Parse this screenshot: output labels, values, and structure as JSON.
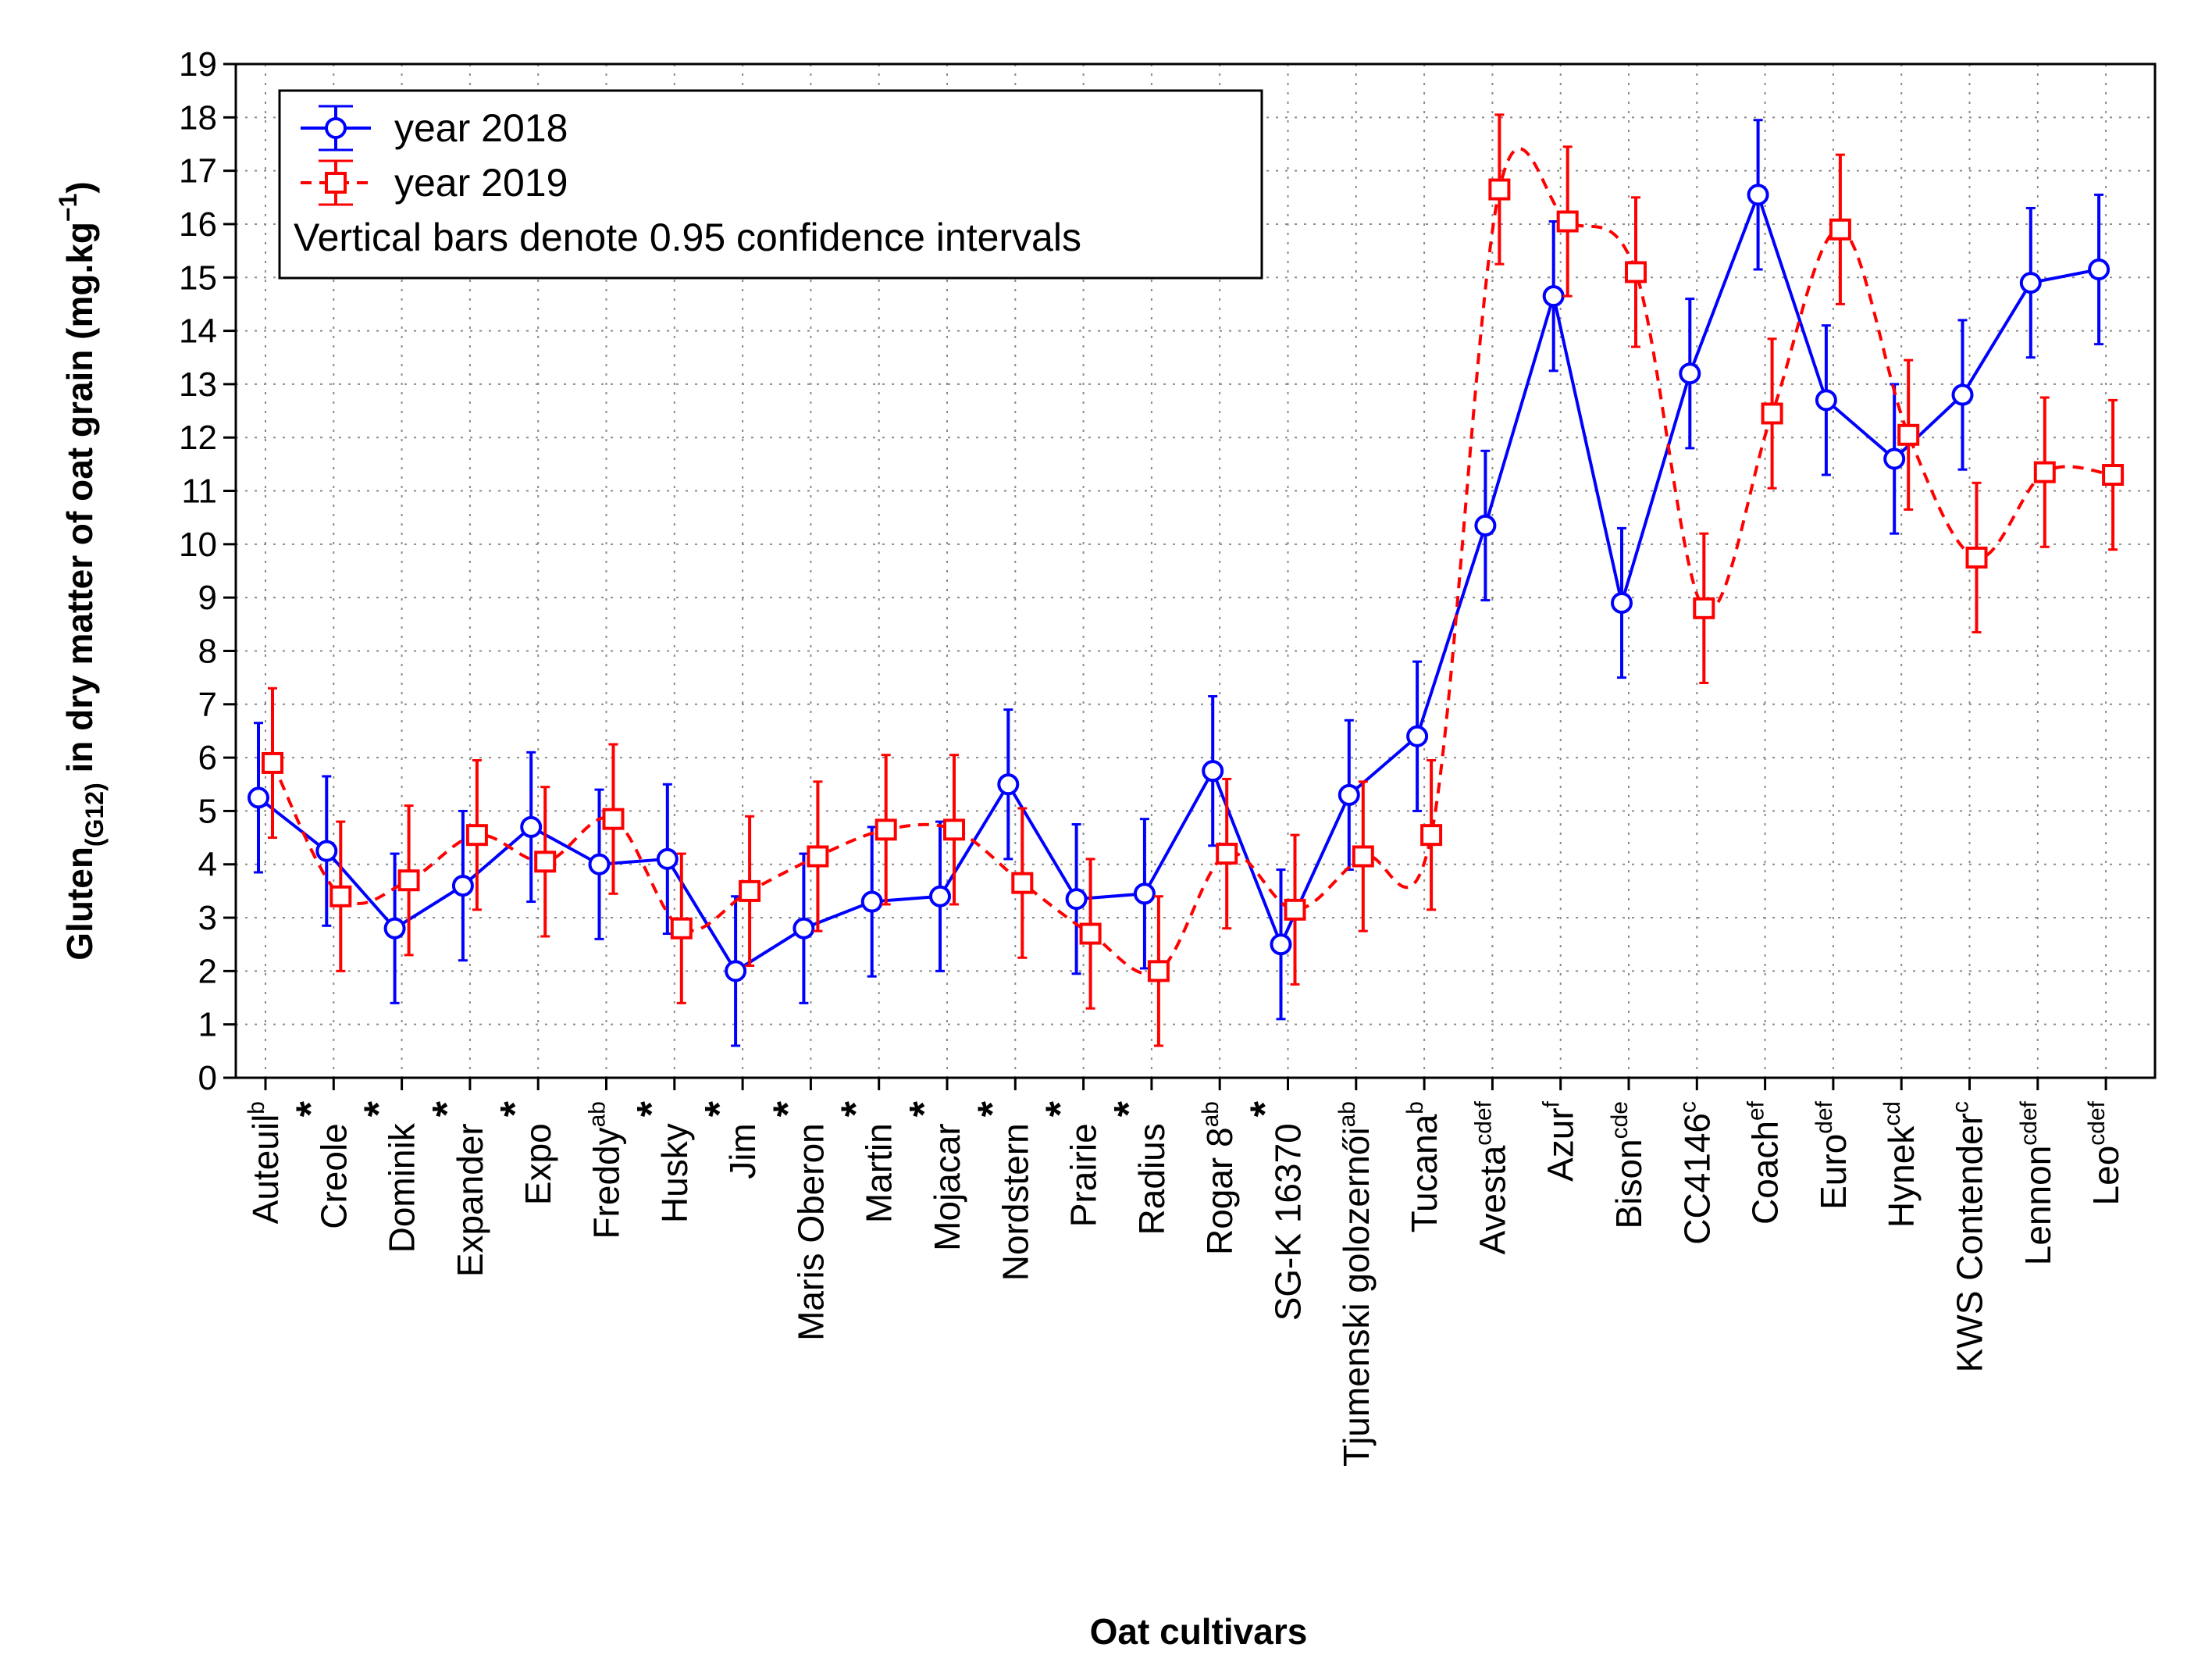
{
  "chart_data": {
    "type": "line",
    "ylabel_parts": [
      "Gluten",
      "(G12)",
      " in dry matter of oat grain (mg.kg",
      "−1",
      ")"
    ],
    "xlabel": "Oat cultivars",
    "ylim": [
      0,
      19
    ],
    "yticks": [
      0,
      1,
      2,
      3,
      4,
      5,
      6,
      7,
      8,
      9,
      10,
      11,
      12,
      13,
      14,
      15,
      16,
      17,
      18,
      19
    ],
    "grid": true,
    "legend_position": "top-left",
    "legend_note": "Vertical bars denote 0.95 confidence intervals",
    "categories": [
      {
        "name": "Auteuil",
        "sup": "b",
        "star": false
      },
      {
        "name": "Creole",
        "sup": "",
        "star": true
      },
      {
        "name": "Dominik",
        "sup": "",
        "star": true
      },
      {
        "name": "Expander",
        "sup": "",
        "star": true
      },
      {
        "name": "Expo",
        "sup": "",
        "star": true
      },
      {
        "name": "Freddy",
        "sup": "ab",
        "star": false
      },
      {
        "name": "Husky",
        "sup": "",
        "star": true
      },
      {
        "name": "Jim",
        "sup": "",
        "star": true
      },
      {
        "name": "Maris Oberon",
        "sup": "",
        "star": true
      },
      {
        "name": "Martin",
        "sup": "",
        "star": true
      },
      {
        "name": "Mojacar",
        "sup": "",
        "star": true
      },
      {
        "name": "Nordstern",
        "sup": "",
        "star": true
      },
      {
        "name": "Prairie",
        "sup": "",
        "star": true
      },
      {
        "name": "Radius",
        "sup": "",
        "star": true
      },
      {
        "name": "Rogar 8",
        "sup": "ab",
        "star": false
      },
      {
        "name": "SG-K 16370",
        "sup": "",
        "star": true
      },
      {
        "name": "Tjumenski golozernői",
        "sup": "ab",
        "star": false
      },
      {
        "name": "Tucana",
        "sup": "b",
        "star": false
      },
      {
        "name": "Avesta",
        "sup": "cdef",
        "star": false
      },
      {
        "name": "Azur",
        "sup": "f",
        "star": false
      },
      {
        "name": "Bison",
        "sup": "cde",
        "star": false
      },
      {
        "name": "CC4146",
        "sup": "c",
        "star": false
      },
      {
        "name": "Coach",
        "sup": "ef",
        "star": false
      },
      {
        "name": "Euro",
        "sup": "def",
        "star": false
      },
      {
        "name": "Hynek",
        "sup": "cd",
        "star": false
      },
      {
        "name": "KWS Contender",
        "sup": "c",
        "star": false
      },
      {
        "name": "Lennon",
        "sup": "cdef",
        "star": false
      },
      {
        "name": "Leo",
        "sup": "cdef",
        "star": false
      }
    ],
    "series": [
      {
        "name": "year 2018",
        "color": "#0000ff",
        "marker": "circle",
        "line": "solid",
        "values": [
          5.25,
          4.25,
          2.8,
          3.6,
          4.7,
          4.0,
          4.1,
          2.0,
          2.8,
          3.3,
          3.4,
          5.5,
          3.35,
          3.45,
          5.75,
          2.5,
          5.3,
          6.4,
          10.35,
          14.65,
          8.9,
          13.2,
          16.55,
          12.7,
          11.6,
          12.8,
          14.9,
          15.15
        ],
        "ci_half": 1.4
      },
      {
        "name": "year 2019",
        "color": "#ff0000",
        "marker": "square",
        "line": "dashed",
        "values": [
          5.9,
          3.4,
          3.7,
          4.55,
          4.05,
          4.85,
          2.8,
          3.5,
          4.15,
          4.65,
          4.65,
          3.65,
          2.7,
          2.0,
          4.2,
          3.15,
          4.15,
          4.55,
          16.65,
          16.05,
          15.1,
          8.8,
          12.45,
          15.9,
          12.05,
          9.75,
          11.35,
          11.3
        ],
        "ci_half": 1.4
      }
    ]
  }
}
